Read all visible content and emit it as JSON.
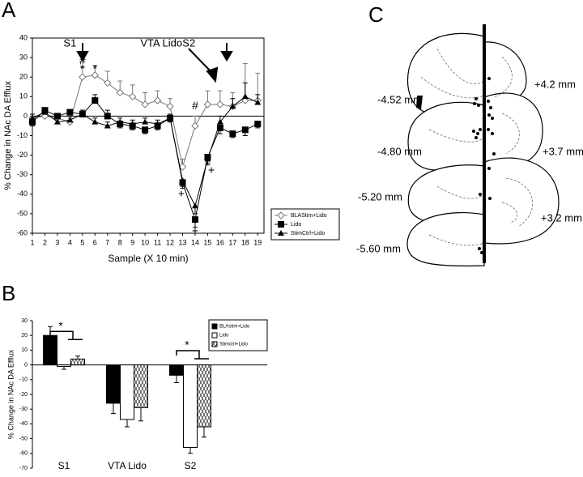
{
  "panel_labels": [
    "A",
    "B",
    "C"
  ],
  "chart_data": [
    {
      "type": "line",
      "ylabel": "% Change in NAc DA Efflux",
      "xlabel": "Sample (X 10 min)",
      "x": [
        1,
        2,
        3,
        4,
        5,
        6,
        7,
        8,
        9,
        10,
        11,
        12,
        13,
        14,
        15,
        16,
        17,
        18,
        19
      ],
      "xlim": [
        1,
        19.5
      ],
      "xticks": [
        1,
        2,
        3,
        4,
        5,
        6,
        7,
        8,
        9,
        10,
        11,
        12,
        13,
        14,
        15,
        16,
        17,
        18,
        19
      ],
      "ylim": [
        -60,
        40
      ],
      "yticks": [
        -60,
        -50,
        -40,
        -30,
        -20,
        -10,
        0,
        10,
        20,
        30,
        40
      ],
      "series": [
        {
          "name": "BLAStim+Lido",
          "color": "#777777",
          "marker": "diamond",
          "values": [
            -1,
            0,
            -1,
            -3,
            20,
            21,
            17,
            12,
            10,
            6,
            8,
            5,
            -26,
            -5,
            6,
            6,
            5,
            8,
            8
          ],
          "errors": [
            2,
            2,
            2,
            2,
            5,
            5,
            6,
            6,
            6,
            6,
            5,
            4,
            4,
            5,
            7,
            7,
            7,
            19,
            14
          ]
        },
        {
          "name": "Lido",
          "color": "#000000",
          "marker": "square",
          "values": [
            -3,
            3,
            0,
            2,
            1,
            8,
            0,
            -4,
            -5,
            -7,
            -5,
            -1,
            -34,
            -53,
            -21,
            -6,
            -9,
            -7,
            -4
          ],
          "errors": [
            2,
            1,
            1,
            1,
            2,
            3,
            3,
            2,
            2,
            2,
            2,
            2,
            3,
            4,
            3,
            3,
            2,
            3,
            2
          ]
        },
        {
          "name": "StimCtrl+Lido",
          "color": "#000000",
          "marker": "triangle",
          "values": [
            -1,
            2,
            -3,
            -2,
            1,
            -3,
            -5,
            -3,
            -4,
            -3,
            -4,
            -1,
            -33,
            -46,
            -22,
            -3,
            5,
            10,
            7
          ],
          "errors": [
            2,
            2,
            2,
            2,
            2,
            2,
            2,
            2,
            2,
            2,
            2,
            2,
            3,
            4,
            3,
            3,
            4,
            7,
            4
          ]
        }
      ],
      "annotations": [
        {
          "text": "S1",
          "x": 4,
          "y": 37
        },
        {
          "text": "#",
          "x": 5,
          "y": 28
        },
        {
          "text": "*",
          "x": 5,
          "y": 24
        },
        {
          "text": "*",
          "x": 6,
          "y": 24
        },
        {
          "text": "VTA Lido",
          "x": 11.3,
          "y": 37
        },
        {
          "text": "S2",
          "x": 13.5,
          "y": 37
        },
        {
          "text": "#",
          "x": 14,
          "y": 5
        },
        {
          "text": "+",
          "x": 12.9,
          "y": -40
        },
        {
          "text": "+",
          "x": 14,
          "y": -59
        },
        {
          "text": "+",
          "x": 15.3,
          "y": -28
        }
      ]
    },
    {
      "type": "bar",
      "ylabel": "% Change in NAc DA Efflux",
      "categories": [
        "S1",
        "VTA Lido",
        "S2"
      ],
      "ylim": [
        -70,
        30
      ],
      "yticks": [
        -70,
        -60,
        -50,
        -40,
        -30,
        -20,
        -10,
        0,
        10,
        20,
        30
      ],
      "series": [
        {
          "name": "BLAstim+Lido",
          "color": "#000000",
          "values": [
            20,
            -26,
            -7
          ],
          "errors": [
            6,
            7,
            5
          ]
        },
        {
          "name": "Lido",
          "color": "#ffffff",
          "values": [
            -1,
            -37,
            -56
          ],
          "errors": [
            2,
            5,
            4
          ]
        },
        {
          "name": "Stimctrl+Lido",
          "color": "hatch",
          "values": [
            4,
            -29,
            -42
          ],
          "errors": [
            2,
            9,
            7
          ]
        }
      ],
      "annotations": [
        {
          "text": "*",
          "category": 0,
          "y": 26
        },
        {
          "text": "*",
          "category": 2,
          "y": 13
        }
      ]
    }
  ],
  "diagram": {
    "labels": [
      "-4.52 mm",
      "-4.80 mm",
      "-5.20 mm",
      "-5.60 mm",
      "+4.2 mm",
      "+3.7 mm",
      "+3.2 mm"
    ]
  }
}
